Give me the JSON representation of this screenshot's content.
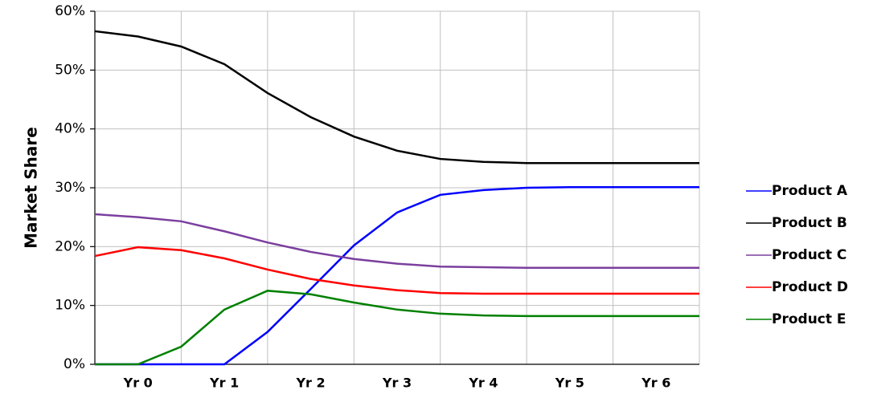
{
  "chart_data": {
    "type": "line",
    "ylabel": "Market Share",
    "categories": [
      null,
      "Yr 0",
      null,
      "Yr 1",
      null,
      "Yr 2",
      null,
      "Yr 3",
      null,
      "Yr 4",
      null,
      "Yr 5",
      null,
      "Yr 6",
      null
    ],
    "ylim": [
      0,
      60
    ],
    "yticks": [
      {
        "value": 0,
        "label": "0%"
      },
      {
        "value": 10,
        "label": "10%"
      },
      {
        "value": 20,
        "label": "20%"
      },
      {
        "value": 30,
        "label": "30%"
      },
      {
        "value": 40,
        "label": "40%"
      },
      {
        "value": 50,
        "label": "50%"
      },
      {
        "value": 60,
        "label": "60%"
      }
    ],
    "grid": true,
    "legend": "right",
    "series": [
      {
        "name": "Product A",
        "color": "#0000ff",
        "values": [
          0,
          0,
          0,
          0,
          5.5,
          12.8,
          20.2,
          25.8,
          28.8,
          29.6,
          30,
          30.1,
          30.1,
          30.1,
          30.1
        ]
      },
      {
        "name": "Product B",
        "color": "#000000",
        "values": [
          56.6,
          55.7,
          54,
          51,
          46.1,
          42,
          38.7,
          36.3,
          34.9,
          34.4,
          34.2,
          34.2,
          34.2,
          34.2,
          34.2
        ]
      },
      {
        "name": "Product C",
        "color": "#7b3f9e",
        "values": [
          25.5,
          25,
          24.3,
          22.6,
          20.7,
          19.1,
          17.9,
          17.1,
          16.6,
          16.5,
          16.4,
          16.4,
          16.4,
          16.4,
          16.4
        ]
      },
      {
        "name": "Product D",
        "color": "#ff0000",
        "values": [
          18.4,
          19.9,
          19.4,
          18,
          16.1,
          14.5,
          13.4,
          12.6,
          12.1,
          12,
          12,
          12,
          12,
          12,
          12
        ]
      },
      {
        "name": "Product E",
        "color": "#008000",
        "values": [
          0,
          0,
          3,
          9.3,
          12.5,
          11.9,
          10.5,
          9.3,
          8.6,
          8.3,
          8.2,
          8.2,
          8.2,
          8.2,
          8.2
        ]
      }
    ]
  }
}
